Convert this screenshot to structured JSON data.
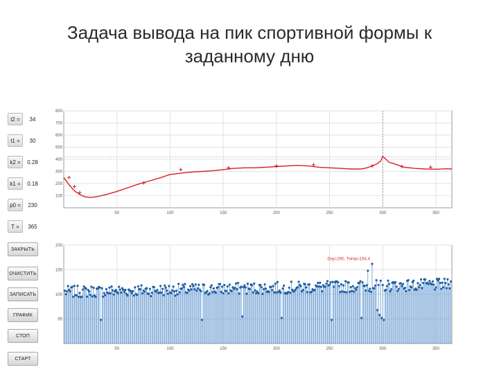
{
  "title": {
    "line1": "Задача вывода на пик спортивной формы к",
    "line2": "заданному дню"
  },
  "params": [
    {
      "label": "t2 =",
      "value": "34"
    },
    {
      "label": "t1 =",
      "value": "30"
    },
    {
      "label": "k2 =",
      "value": "0.28"
    },
    {
      "label": "k1 =",
      "value": "0.18"
    },
    {
      "label": "p0 =",
      "value": "230"
    },
    {
      "label": "T =",
      "value": "365"
    }
  ],
  "buttons": [
    {
      "label": "ЗАКРЫТЬ"
    },
    {
      "label": "ОЧИСТИТЬ"
    },
    {
      "label": "ЗАПИСАТЬ"
    },
    {
      "label": "ГРАФИК"
    },
    {
      "label": "СТОП"
    },
    {
      "label": "СТАРТ"
    }
  ],
  "chart_data": [
    {
      "type": "line",
      "x_ticks": [
        50,
        100,
        150,
        200,
        250,
        300,
        350
      ],
      "y_ticks": [
        100,
        200,
        300,
        400,
        500,
        600,
        700,
        800
      ],
      "xlim": [
        0,
        365
      ],
      "ylim": [
        0,
        800
      ],
      "grid": true,
      "target_day": 300,
      "peak_level": 420,
      "colors": {
        "line": "#d42020",
        "marker": "#c01818",
        "grid": "#e2e2e2",
        "vline": "#888888"
      },
      "series": [
        {
          "x": [
            0,
            5,
            10,
            15,
            20,
            25,
            30,
            35,
            40,
            50,
            60,
            70,
            80,
            90,
            100,
            110,
            120,
            130,
            140,
            150,
            160,
            170,
            180,
            190,
            200,
            210,
            220,
            230,
            240,
            250,
            260,
            270,
            280,
            285,
            290,
            295,
            298,
            300,
            303,
            306,
            310,
            315,
            320,
            330,
            340,
            350,
            360,
            365
          ],
          "y": [
            250,
            190,
            140,
            110,
            90,
            85,
            90,
            100,
            110,
            135,
            165,
            195,
            220,
            245,
            275,
            285,
            295,
            300,
            305,
            315,
            325,
            330,
            330,
            335,
            340,
            345,
            350,
            345,
            335,
            330,
            325,
            320,
            320,
            330,
            345,
            365,
            385,
            425,
            400,
            375,
            365,
            350,
            335,
            325,
            320,
            318,
            322,
            320
          ]
        }
      ],
      "markers": [
        {
          "x": 5,
          "y": 250
        },
        {
          "x": 10,
          "y": 175
        },
        {
          "x": 15,
          "y": 125
        },
        {
          "x": 75,
          "y": 205
        },
        {
          "x": 110,
          "y": 315
        },
        {
          "x": 155,
          "y": 330
        },
        {
          "x": 200,
          "y": 345
        },
        {
          "x": 235,
          "y": 355
        },
        {
          "x": 290,
          "y": 345
        },
        {
          "x": 318,
          "y": 340
        },
        {
          "x": 345,
          "y": 335
        }
      ]
    },
    {
      "type": "bar",
      "x_ticks": [
        50,
        100,
        150,
        200,
        250,
        300,
        350
      ],
      "y_ticks": [
        50,
        100,
        150,
        200
      ],
      "xlim": [
        0,
        365
      ],
      "ylim": [
        0,
        200
      ],
      "grid": true,
      "annotation": "Day=290, Tsimp=164.4",
      "colors": {
        "stem": "#4a86c8",
        "marker": "#1f5fa3",
        "annotation": "#d43030",
        "grid": "#e2e2e2"
      },
      "value_model": {
        "days": 364,
        "base_mean_start": 105,
        "base_mean_end": 120,
        "jitter": 12,
        "low_days": [
          {
            "x": 35,
            "y": 48
          },
          {
            "x": 130,
            "y": 48
          },
          {
            "x": 168,
            "y": 55
          },
          {
            "x": 205,
            "y": 52
          },
          {
            "x": 252,
            "y": 48
          },
          {
            "x": 280,
            "y": 52
          },
          {
            "x": 295,
            "y": 68
          },
          {
            "x": 297,
            "y": 58
          },
          {
            "x": 299,
            "y": 52
          },
          {
            "x": 301,
            "y": 48
          }
        ],
        "high_days": [
          {
            "x": 290,
            "y": 162
          },
          {
            "x": 286,
            "y": 148
          }
        ]
      }
    }
  ]
}
